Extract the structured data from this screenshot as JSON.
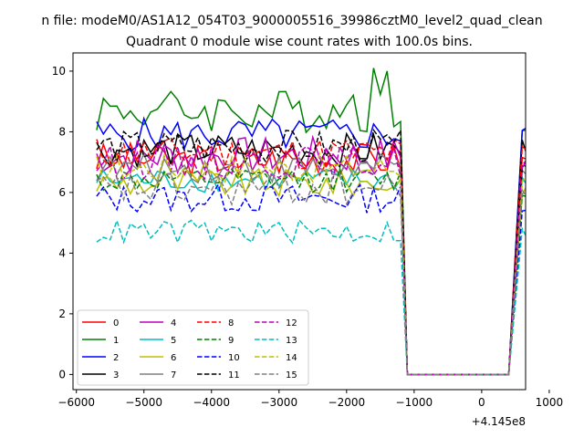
{
  "chart_data": {
    "type": "line",
    "suptitle": "n file: modeM0/AS1A12_054T03_9000005516_39986cztM0_level2_quad_clean",
    "title": "Quadrant 0 module wise count rates with 100.0s bins.",
    "xlabel": "",
    "ylabel": "",
    "x_offset_label": "+4.145e8",
    "xlim": [
      -6050,
      650
    ],
    "ylim": [
      -0.5,
      10.6
    ],
    "xticks": [
      -6000,
      -5000,
      -4000,
      -3000,
      -2000,
      -1000,
      0,
      1000
    ],
    "xtick_labels": [
      "−6000",
      "−5000",
      "−4000",
      "−3000",
      "−2000",
      "−1000",
      "0",
      "1000"
    ],
    "yticks": [
      0,
      2,
      4,
      6,
      8,
      10
    ],
    "ytick_labels": [
      "0",
      "2",
      "4",
      "6",
      "8",
      "10"
    ],
    "grid": false,
    "legend_position": "lower left",
    "legend_columns": 4,
    "bin_width_s": 100,
    "active_start": -5700,
    "active_end": -1200,
    "gap_start": -1100,
    "gap_end": 400,
    "after_start": 600,
    "after_end": 1300,
    "series": [
      {
        "name": "0",
        "color": "#ff0000",
        "dash": "solid",
        "level": 7.1,
        "amp": 0.35,
        "after": 7.0,
        "drop_end": 5.6,
        "gap_value": 0
      },
      {
        "name": "1",
        "color": "#008000",
        "dash": "solid",
        "level": 8.7,
        "amp": 0.45,
        "after": 8.6,
        "drop_end": 6.2,
        "gap_value": 0,
        "peaks": [
          [
            -1600,
            10.1
          ],
          [
            -1400,
            10.0
          ],
          [
            -1900,
            9.2
          ],
          [
            -5600,
            9.1
          ]
        ]
      },
      {
        "name": "2",
        "color": "#0000ff",
        "dash": "solid",
        "level": 7.9,
        "amp": 0.35,
        "after": 8.1,
        "drop_end": 5.8,
        "gap_value": 0
      },
      {
        "name": "3",
        "color": "#000000",
        "dash": "solid",
        "level": 7.4,
        "amp": 0.35,
        "after": 7.4,
        "drop_end": 5.4,
        "gap_value": 0
      },
      {
        "name": "4",
        "color": "#bf00bf",
        "dash": "solid",
        "level": 7.2,
        "amp": 0.4,
        "after": 7.1,
        "drop_end": 5.2,
        "gap_value": 0
      },
      {
        "name": "5",
        "color": "#00bfbf",
        "dash": "solid",
        "level": 6.4,
        "amp": 0.25,
        "after": 6.4,
        "drop_end": 5.0,
        "gap_value": 0
      },
      {
        "name": "6",
        "color": "#bfbf00",
        "dash": "solid",
        "level": 6.3,
        "amp": 0.3,
        "after": 6.3,
        "drop_end": 5.1,
        "gap_value": 0
      },
      {
        "name": "7",
        "color": "#808080",
        "dash": "solid",
        "level": 6.8,
        "amp": 0.3,
        "after": 6.8,
        "drop_end": 5.0,
        "gap_value": 0
      },
      {
        "name": "8",
        "color": "#ff0000",
        "dash": "dashed",
        "level": 7.3,
        "amp": 0.35,
        "after": 7.2,
        "drop_end": 5.3,
        "gap_value": 0
      },
      {
        "name": "9",
        "color": "#008000",
        "dash": "dashed",
        "level": 6.4,
        "amp": 0.25,
        "after": 6.1,
        "drop_end": 4.9,
        "gap_value": 0
      },
      {
        "name": "10",
        "color": "#0000ff",
        "dash": "dashed",
        "level": 5.8,
        "amp": 0.3,
        "after": 5.3,
        "drop_end": 3.6,
        "gap_value": 0
      },
      {
        "name": "11",
        "color": "#000000",
        "dash": "dashed",
        "level": 7.5,
        "amp": 0.35,
        "after": 7.3,
        "drop_end": 5.0,
        "gap_value": 0
      },
      {
        "name": "12",
        "color": "#bf00bf",
        "dash": "dashed",
        "level": 7.0,
        "amp": 0.35,
        "after": 7.0,
        "drop_end": 4.9,
        "gap_value": 0
      },
      {
        "name": "13",
        "color": "#00bfbf",
        "dash": "dashed",
        "level": 4.7,
        "amp": 0.25,
        "after": 4.6,
        "drop_end": 3.3,
        "gap_value": 0
      },
      {
        "name": "14",
        "color": "#bfbf00",
        "dash": "dashed",
        "level": 6.8,
        "amp": 0.3,
        "after": 6.6,
        "drop_end": 4.8,
        "gap_value": 0
      },
      {
        "name": "15",
        "color": "#808080",
        "dash": "dashed",
        "level": 6.1,
        "amp": 0.35,
        "after": 6.0,
        "drop_end": 4.5,
        "gap_value": 0
      }
    ]
  }
}
